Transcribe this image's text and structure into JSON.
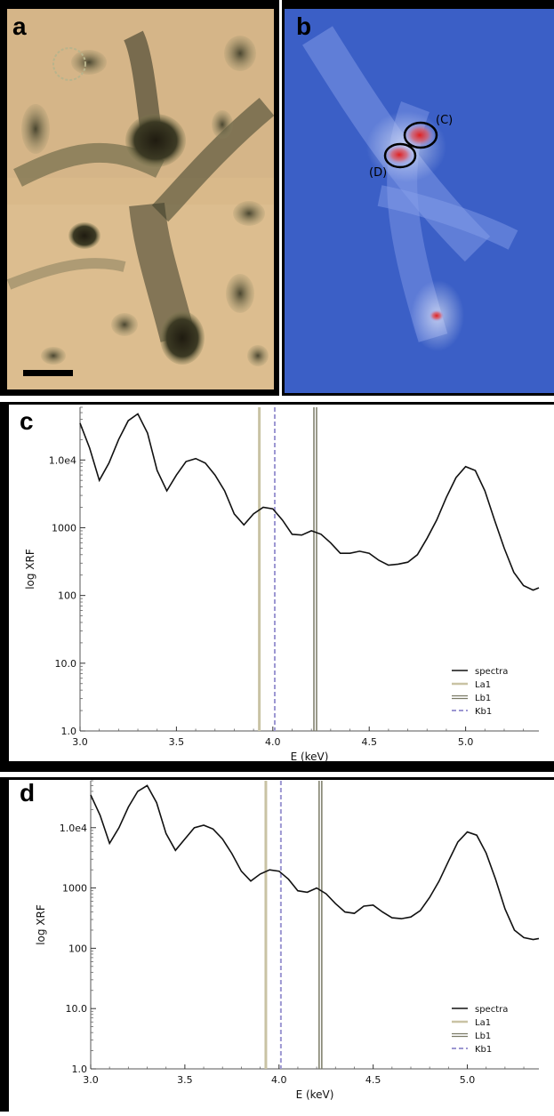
{
  "figure": {
    "panel_a": {
      "letter": "a"
    },
    "panel_b": {
      "letter": "b",
      "annotations": [
        "(C)",
        "(D)"
      ]
    },
    "panel_c": {
      "letter": "c"
    },
    "panel_d": {
      "letter": "d"
    }
  },
  "colors": {
    "micrograph_bg": "#d9b98a",
    "map_bg": "#3b5fc6",
    "spectra": "#111111",
    "La1": "#c9c3a4",
    "Lb1": "#7a7a66",
    "Kb1": "#9c97d2"
  },
  "chart_data": [
    {
      "panel": "c",
      "type": "line",
      "xlabel": "E (keV)",
      "ylabel": "log XRF",
      "yscale": "log",
      "xlim": [
        3.0,
        5.38
      ],
      "ylim": [
        1.0,
        60000
      ],
      "xticks": [
        "3.0",
        "3.5",
        "4.0",
        "4.5",
        "5.0"
      ],
      "yticks": [
        "1.0",
        "10.0",
        "100",
        "1000",
        "1.0e4"
      ],
      "legend": {
        "position": "bottom-right",
        "entries": [
          "spectra",
          "La1",
          "Lb1",
          "Kb1"
        ]
      },
      "series": [
        {
          "name": "spectra",
          "x": [
            3.0,
            3.05,
            3.1,
            3.15,
            3.2,
            3.25,
            3.3,
            3.35,
            3.4,
            3.45,
            3.5,
            3.55,
            3.6,
            3.65,
            3.7,
            3.75,
            3.8,
            3.85,
            3.9,
            3.95,
            4.0,
            4.05,
            4.1,
            4.15,
            4.2,
            4.25,
            4.3,
            4.35,
            4.4,
            4.45,
            4.5,
            4.55,
            4.6,
            4.65,
            4.7,
            4.75,
            4.8,
            4.85,
            4.9,
            4.95,
            5.0,
            5.05,
            5.1,
            5.15,
            5.2,
            5.25,
            5.3,
            5.35,
            5.38
          ],
          "y": [
            35000,
            15000,
            5000,
            9000,
            20000,
            38000,
            48000,
            25000,
            7000,
            3500,
            6000,
            9500,
            10500,
            9000,
            6000,
            3500,
            1600,
            1100,
            1600,
            2000,
            1900,
            1300,
            800,
            780,
            900,
            800,
            600,
            420,
            420,
            450,
            420,
            330,
            280,
            290,
            310,
            400,
            700,
            1300,
            2800,
            5500,
            8000,
            7000,
            3500,
            1300,
            500,
            220,
            140,
            120,
            130
          ]
        }
      ],
      "vertical_lines": [
        {
          "name": "La1",
          "x": 3.93
        },
        {
          "name": "Lb1",
          "x": 4.22
        },
        {
          "name": "Kb1",
          "x": 4.01
        }
      ]
    },
    {
      "panel": "d",
      "type": "line",
      "xlabel": "E (keV)",
      "ylabel": "log XRF",
      "yscale": "log",
      "xlim": [
        3.0,
        5.38
      ],
      "ylim": [
        1.0,
        60000
      ],
      "xticks": [
        "3.0",
        "3.5",
        "4.0",
        "4.5",
        "5.0"
      ],
      "yticks": [
        "1.0",
        "10.0",
        "100",
        "1000",
        "1.0e4"
      ],
      "legend": {
        "position": "bottom-right",
        "entries": [
          "spectra",
          "La1",
          "Lb1",
          "Kb1"
        ]
      },
      "series": [
        {
          "name": "spectra",
          "x": [
            3.0,
            3.05,
            3.1,
            3.15,
            3.2,
            3.25,
            3.3,
            3.35,
            3.4,
            3.45,
            3.5,
            3.55,
            3.6,
            3.65,
            3.7,
            3.75,
            3.8,
            3.85,
            3.9,
            3.95,
            4.0,
            4.05,
            4.1,
            4.15,
            4.2,
            4.25,
            4.3,
            4.35,
            4.4,
            4.45,
            4.5,
            4.55,
            4.6,
            4.65,
            4.7,
            4.75,
            4.8,
            4.85,
            4.9,
            4.95,
            5.0,
            5.05,
            5.1,
            5.15,
            5.2,
            5.25,
            5.3,
            5.35,
            5.38
          ],
          "y": [
            35000,
            16000,
            5500,
            10000,
            22000,
            40000,
            50000,
            26000,
            8000,
            4200,
            6500,
            10000,
            11000,
            9500,
            6500,
            3700,
            1900,
            1300,
            1700,
            2000,
            1900,
            1400,
            900,
            850,
            1000,
            800,
            550,
            400,
            380,
            500,
            520,
            400,
            320,
            310,
            330,
            420,
            700,
            1300,
            2800,
            5800,
            8500,
            7500,
            3800,
            1400,
            450,
            200,
            150,
            140,
            145
          ]
        }
      ],
      "vertical_lines": [
        {
          "name": "La1",
          "x": 3.93
        },
        {
          "name": "Lb1",
          "x": 4.22
        },
        {
          "name": "Kb1",
          "x": 4.01
        }
      ]
    }
  ]
}
